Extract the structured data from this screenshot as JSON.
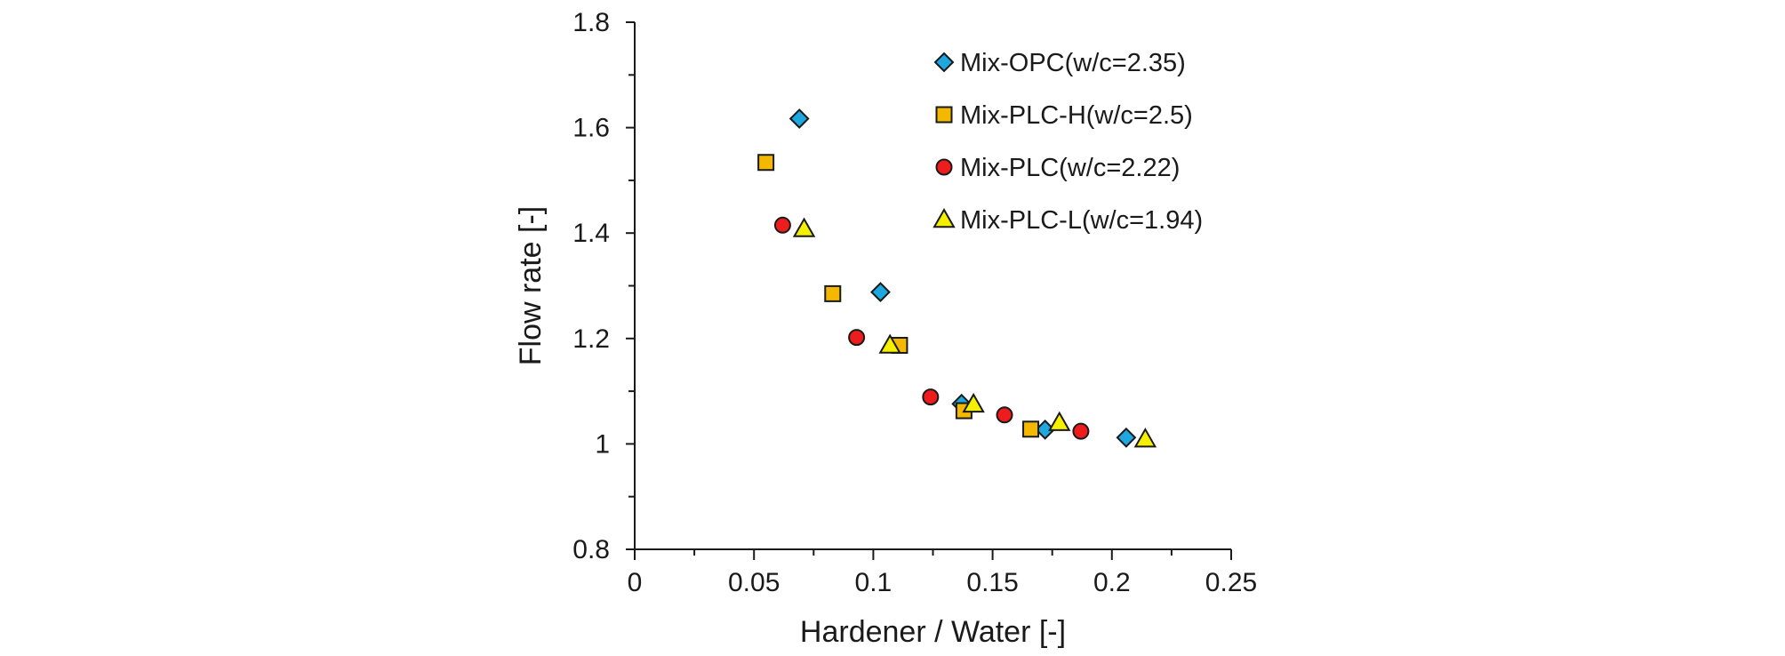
{
  "chart_data": {
    "type": "scatter",
    "xlabel": "Hardener / Water [-]",
    "ylabel": "Flow rate [-]",
    "xlim": [
      0,
      0.25
    ],
    "ylim": [
      0.8,
      1.8
    ],
    "xticks": [
      "0",
      "0.05",
      "0.1",
      "0.15",
      "0.2",
      "0.25"
    ],
    "yticks": [
      "0.8",
      "1",
      "1.2",
      "1.4",
      "1.6",
      "1.8"
    ],
    "grid": false,
    "legend_position": "top-right",
    "series": [
      {
        "name": "Mix-OPC(w/c=2.35)",
        "marker": "diamond",
        "color": "#1fa8e0",
        "points": [
          {
            "x": 0.069,
            "y": 1.617
          },
          {
            "x": 0.103,
            "y": 1.288
          },
          {
            "x": 0.137,
            "y": 1.076
          },
          {
            "x": 0.172,
            "y": 1.027
          },
          {
            "x": 0.206,
            "y": 1.012
          }
        ]
      },
      {
        "name": "Mix-PLC-H(w/c=2.5)",
        "marker": "square",
        "color": "#f5b800",
        "points": [
          {
            "x": 0.055,
            "y": 1.534
          },
          {
            "x": 0.083,
            "y": 1.285
          },
          {
            "x": 0.111,
            "y": 1.187
          },
          {
            "x": 0.138,
            "y": 1.063
          },
          {
            "x": 0.166,
            "y": 1.028
          }
        ]
      },
      {
        "name": "Mix-PLC(w/c=2.22)",
        "marker": "circle",
        "color": "#ee1c1c",
        "points": [
          {
            "x": 0.062,
            "y": 1.415
          },
          {
            "x": 0.093,
            "y": 1.202
          },
          {
            "x": 0.124,
            "y": 1.089
          },
          {
            "x": 0.155,
            "y": 1.055
          },
          {
            "x": 0.187,
            "y": 1.024
          }
        ]
      },
      {
        "name": "Mix-PLC-L(w/c=1.94)",
        "marker": "triangle",
        "color": "#f5f000",
        "points": [
          {
            "x": 0.071,
            "y": 1.408
          },
          {
            "x": 0.107,
            "y": 1.187
          },
          {
            "x": 0.142,
            "y": 1.075
          },
          {
            "x": 0.178,
            "y": 1.04
          },
          {
            "x": 0.214,
            "y": 1.009
          }
        ]
      }
    ]
  }
}
